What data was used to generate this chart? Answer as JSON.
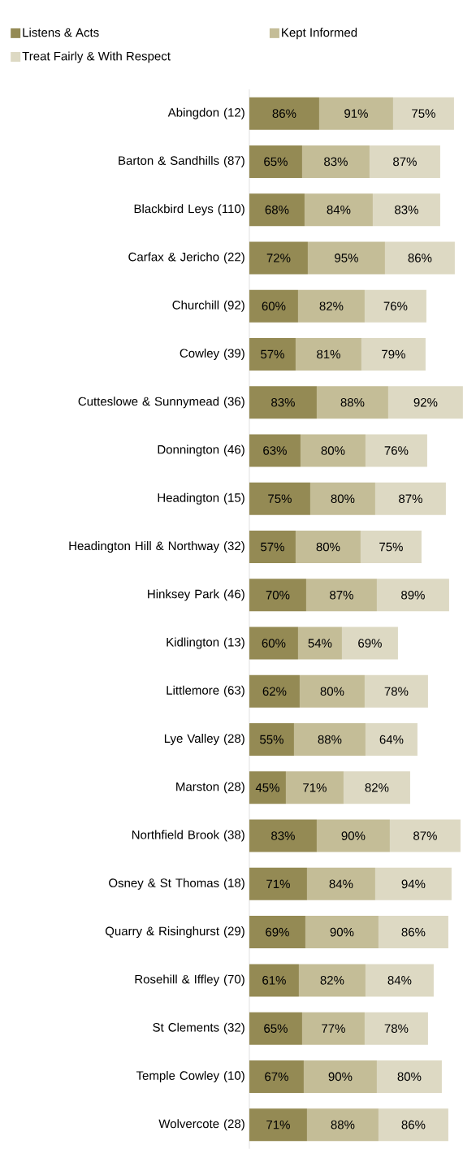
{
  "chart_data": {
    "type": "bar",
    "orientation": "horizontal",
    "stacked": true,
    "legend": "top left",
    "categories": [
      "Abingdon (12)",
      "Barton & Sandhills (87)",
      "Blackbird Leys (110)",
      "Carfax & Jericho (22)",
      "Churchill (92)",
      "Cowley (39)",
      "Cutteslowe & Sunnymead (36)",
      "Donnington (46)",
      "Headington (15)",
      "Headington Hill & Northway (32)",
      "Hinksey Park (46)",
      "Kidlington (13)",
      "Littlemore (63)",
      "Lye Valley (28)",
      "Marston (28)",
      "Northfield Brook (38)",
      "Osney & St Thomas (18)",
      "Quarry & Risinghurst (29)",
      "Rosehill & Iffley (70)",
      "St Clements (32)",
      "Temple Cowley (10)",
      "Wolvercote (28)"
    ],
    "series": [
      {
        "name": "Listens & Acts",
        "color": "#948a54",
        "values": [
          86,
          65,
          68,
          72,
          60,
          57,
          83,
          63,
          75,
          57,
          70,
          60,
          62,
          55,
          45,
          83,
          71,
          69,
          61,
          65,
          67,
          71
        ],
        "value_labels": [
          "86%",
          "65%",
          "68%",
          "72%",
          "60%",
          "57%",
          "83%",
          "63%",
          "75%",
          "57%",
          "70%",
          "60%",
          "62%",
          "55%",
          "45%",
          "83%",
          "71%",
          "69%",
          "61%",
          "65%",
          "67%",
          "71%"
        ]
      },
      {
        "name": "Kept Informed",
        "color": "#c4bd97",
        "values": [
          91,
          83,
          84,
          95,
          82,
          81,
          88,
          80,
          80,
          80,
          87,
          54,
          80,
          88,
          71,
          90,
          84,
          90,
          82,
          77,
          90,
          88
        ],
        "value_labels": [
          "91%",
          "83%",
          "84%",
          "95%",
          "82%",
          "81%",
          "88%",
          "80%",
          "80%",
          "80%",
          "87%",
          "54%",
          "80%",
          "88%",
          "71%",
          "90%",
          "84%",
          "90%",
          "82%",
          "77%",
          "90%",
          "88%"
        ]
      },
      {
        "name": "Treat Fairly & With Respect",
        "color": "#ddd9c3",
        "values": [
          75,
          87,
          83,
          86,
          76,
          79,
          92,
          76,
          87,
          75,
          89,
          69,
          78,
          64,
          82,
          87,
          94,
          86,
          84,
          78,
          80,
          86
        ],
        "value_labels": [
          "75%",
          "87%",
          "83%",
          "86%",
          "76%",
          "79%",
          "92%",
          "76%",
          "87%",
          "75%",
          "89%",
          "69%",
          "78%",
          "64%",
          "82%",
          "87%",
          "94%",
          "86%",
          "84%",
          "78%",
          "80%",
          "86%"
        ]
      }
    ]
  }
}
